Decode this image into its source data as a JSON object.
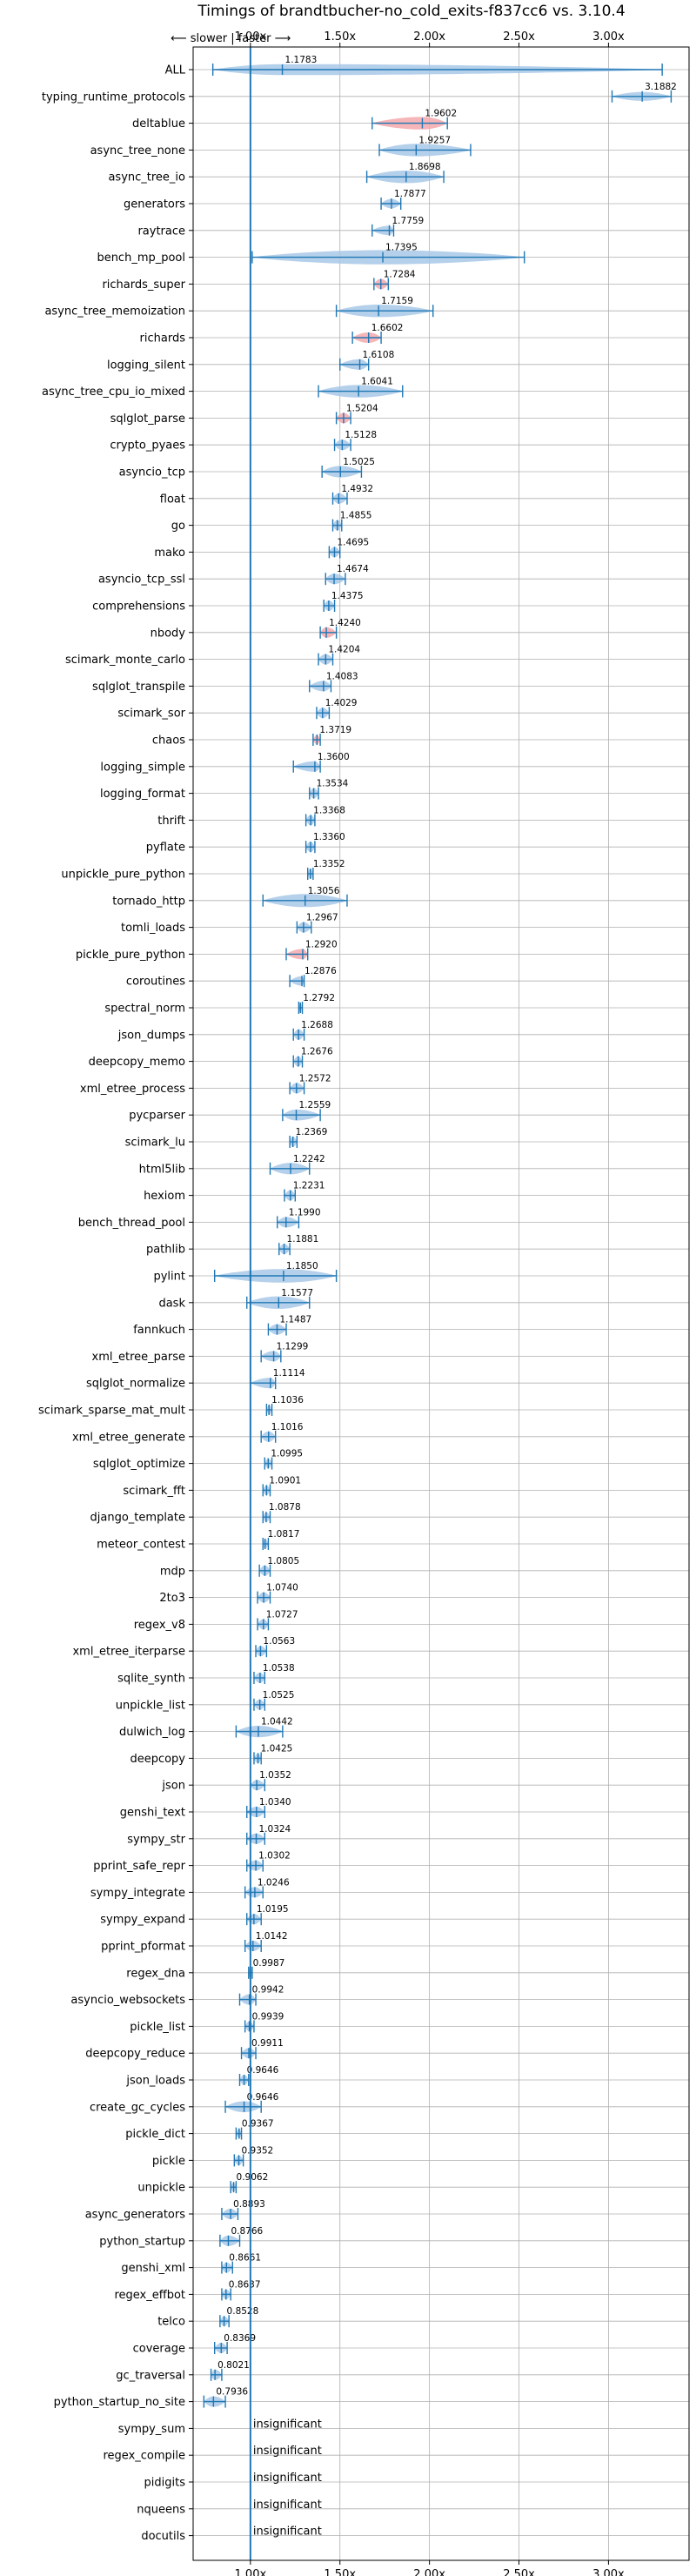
{
  "chart_data": {
    "type": "violin",
    "title": "Timings of brandtbucher-no_cold_exits-f837cc6 vs. 3.10.4",
    "direction_label": "⟵ slower | faster ⟶",
    "xlim": [
      0.68,
      3.45
    ],
    "x_ticks": [
      1.0,
      1.5,
      2.0,
      2.5,
      3.0
    ],
    "x_tick_labels": [
      "1.00x",
      "1.50x",
      "2.00x",
      "2.50x",
      "3.00x"
    ],
    "reference_line": 1.0,
    "grid": true,
    "insignificant_label": "insignificant",
    "colors": {
      "faster": "#a8c8e8",
      "slower": "#f4a8ac",
      "line": "#1f77b4",
      "grid": "#b0b0b0"
    },
    "benchmarks": [
      {
        "name": "ALL",
        "value": 1.1783,
        "label": "1.1783",
        "min": 0.79,
        "max": 3.3,
        "width": 0.28,
        "red": false
      },
      {
        "name": "typing_runtime_protocols",
        "value": 3.1882,
        "label": "3.1882",
        "min": 3.02,
        "max": 3.35,
        "width": 0.2,
        "red": false
      },
      {
        "name": "deltablue",
        "value": 1.9602,
        "label": "1.9602",
        "min": 1.68,
        "max": 2.1,
        "width": 0.34,
        "red": true
      },
      {
        "name": "async_tree_none",
        "value": 1.9257,
        "label": "1.9257",
        "min": 1.72,
        "max": 2.23,
        "width": 0.34,
        "red": false
      },
      {
        "name": "async_tree_io",
        "value": 1.8698,
        "label": "1.8698",
        "min": 1.65,
        "max": 2.08,
        "width": 0.34,
        "red": false
      },
      {
        "name": "generators",
        "value": 1.7877,
        "label": "1.7877",
        "min": 1.73,
        "max": 1.84,
        "width": 0.22,
        "red": false
      },
      {
        "name": "raytrace",
        "value": 1.7759,
        "label": "1.7759",
        "min": 1.68,
        "max": 1.8,
        "width": 0.22,
        "red": false
      },
      {
        "name": "bench_mp_pool",
        "value": 1.7395,
        "label": "1.7395",
        "min": 1.01,
        "max": 2.53,
        "width": 0.4,
        "red": false
      },
      {
        "name": "richards_super",
        "value": 1.7284,
        "label": "1.7284",
        "min": 1.69,
        "max": 1.77,
        "width": 0.26,
        "red": true
      },
      {
        "name": "async_tree_memoization",
        "value": 1.7159,
        "label": "1.7159",
        "min": 1.48,
        "max": 2.02,
        "width": 0.34,
        "red": false
      },
      {
        "name": "richards",
        "value": 1.6602,
        "label": "1.6602",
        "min": 1.57,
        "max": 1.73,
        "width": 0.26,
        "red": true
      },
      {
        "name": "logging_silent",
        "value": 1.6108,
        "label": "1.6108",
        "min": 1.5,
        "max": 1.66,
        "width": 0.26,
        "red": false
      },
      {
        "name": "async_tree_cpu_io_mixed",
        "value": 1.6041,
        "label": "1.6041",
        "min": 1.38,
        "max": 1.85,
        "width": 0.34,
        "red": false
      },
      {
        "name": "sqlglot_parse",
        "value": 1.5204,
        "label": "1.5204",
        "min": 1.48,
        "max": 1.56,
        "width": 0.26,
        "red": true
      },
      {
        "name": "crypto_pyaes",
        "value": 1.5128,
        "label": "1.5128",
        "min": 1.47,
        "max": 1.56,
        "width": 0.26,
        "red": false
      },
      {
        "name": "asyncio_tcp",
        "value": 1.5025,
        "label": "1.5025",
        "min": 1.4,
        "max": 1.62,
        "width": 0.3,
        "red": false
      },
      {
        "name": "float",
        "value": 1.4932,
        "label": "1.4932",
        "min": 1.46,
        "max": 1.54,
        "width": 0.26,
        "red": false
      },
      {
        "name": "go",
        "value": 1.4855,
        "label": "1.4855",
        "min": 1.46,
        "max": 1.51,
        "width": 0.26,
        "red": false
      },
      {
        "name": "mako",
        "value": 1.4695,
        "label": "1.4695",
        "min": 1.44,
        "max": 1.5,
        "width": 0.26,
        "red": false
      },
      {
        "name": "asyncio_tcp_ssl",
        "value": 1.4674,
        "label": "1.4674",
        "min": 1.42,
        "max": 1.53,
        "width": 0.26,
        "red": false
      },
      {
        "name": "comprehensions",
        "value": 1.4375,
        "label": "1.4375",
        "min": 1.41,
        "max": 1.47,
        "width": 0.26,
        "red": false
      },
      {
        "name": "nbody",
        "value": 1.424,
        "label": "1.4240",
        "min": 1.39,
        "max": 1.48,
        "width": 0.26,
        "red": true
      },
      {
        "name": "scimark_monte_carlo",
        "value": 1.4204,
        "label": "1.4204",
        "min": 1.38,
        "max": 1.46,
        "width": 0.26,
        "red": false
      },
      {
        "name": "sqlglot_transpile",
        "value": 1.4083,
        "label": "1.4083",
        "min": 1.33,
        "max": 1.45,
        "width": 0.26,
        "red": false
      },
      {
        "name": "scimark_sor",
        "value": 1.4029,
        "label": "1.4029",
        "min": 1.37,
        "max": 1.44,
        "width": 0.26,
        "red": false
      },
      {
        "name": "chaos",
        "value": 1.3719,
        "label": "1.3719",
        "min": 1.35,
        "max": 1.39,
        "width": 0.22,
        "red": true
      },
      {
        "name": "logging_simple",
        "value": 1.36,
        "label": "1.3600",
        "min": 1.24,
        "max": 1.39,
        "width": 0.26,
        "red": false
      },
      {
        "name": "logging_format",
        "value": 1.3534,
        "label": "1.3534",
        "min": 1.33,
        "max": 1.38,
        "width": 0.26,
        "red": false
      },
      {
        "name": "thrift",
        "value": 1.3368,
        "label": "1.3368",
        "min": 1.31,
        "max": 1.36,
        "width": 0.26,
        "red": false
      },
      {
        "name": "pyflate",
        "value": 1.336,
        "label": "1.3360",
        "min": 1.31,
        "max": 1.36,
        "width": 0.26,
        "red": false
      },
      {
        "name": "unpickle_pure_python",
        "value": 1.3352,
        "label": "1.3352",
        "min": 1.32,
        "max": 1.35,
        "width": 0.26,
        "red": false
      },
      {
        "name": "tornado_http",
        "value": 1.3056,
        "label": "1.3056",
        "min": 1.07,
        "max": 1.54,
        "width": 0.36,
        "red": false
      },
      {
        "name": "tomli_loads",
        "value": 1.2967,
        "label": "1.2967",
        "min": 1.26,
        "max": 1.34,
        "width": 0.26,
        "red": false
      },
      {
        "name": "pickle_pure_python",
        "value": 1.292,
        "label": "1.2920",
        "min": 1.2,
        "max": 1.32,
        "width": 0.26,
        "red": true
      },
      {
        "name": "coroutines",
        "value": 1.2876,
        "label": "1.2876",
        "min": 1.22,
        "max": 1.3,
        "width": 0.22,
        "red": false
      },
      {
        "name": "spectral_norm",
        "value": 1.2792,
        "label": "1.2792",
        "min": 1.27,
        "max": 1.29,
        "width": 0.22,
        "red": false
      },
      {
        "name": "json_dumps",
        "value": 1.2688,
        "label": "1.2688",
        "min": 1.24,
        "max": 1.3,
        "width": 0.26,
        "red": false
      },
      {
        "name": "deepcopy_memo",
        "value": 1.2676,
        "label": "1.2676",
        "min": 1.24,
        "max": 1.29,
        "width": 0.26,
        "red": false
      },
      {
        "name": "xml_etree_process",
        "value": 1.2572,
        "label": "1.2572",
        "min": 1.22,
        "max": 1.3,
        "width": 0.26,
        "red": false
      },
      {
        "name": "pycparser",
        "value": 1.2559,
        "label": "1.2559",
        "min": 1.18,
        "max": 1.39,
        "width": 0.28,
        "red": false
      },
      {
        "name": "scimark_lu",
        "value": 1.2369,
        "label": "1.2369",
        "min": 1.22,
        "max": 1.26,
        "width": 0.26,
        "red": false
      },
      {
        "name": "html5lib",
        "value": 1.2242,
        "label": "1.2242",
        "min": 1.11,
        "max": 1.33,
        "width": 0.3,
        "red": false
      },
      {
        "name": "hexiom",
        "value": 1.2231,
        "label": "1.2231",
        "min": 1.19,
        "max": 1.25,
        "width": 0.26,
        "red": false
      },
      {
        "name": "bench_thread_pool",
        "value": 1.199,
        "label": "1.1990",
        "min": 1.15,
        "max": 1.27,
        "width": 0.26,
        "red": false
      },
      {
        "name": "pathlib",
        "value": 1.1881,
        "label": "1.1881",
        "min": 1.16,
        "max": 1.22,
        "width": 0.26,
        "red": false
      },
      {
        "name": "pylint",
        "value": 1.185,
        "label": "1.1850",
        "min": 0.8,
        "max": 1.48,
        "width": 0.38,
        "red": false
      },
      {
        "name": "dask",
        "value": 1.1577,
        "label": "1.1577",
        "min": 0.98,
        "max": 1.33,
        "width": 0.34,
        "red": false
      },
      {
        "name": "fannkuch",
        "value": 1.1487,
        "label": "1.1487",
        "min": 1.1,
        "max": 1.2,
        "width": 0.26,
        "red": false
      },
      {
        "name": "xml_etree_parse",
        "value": 1.1299,
        "label": "1.1299",
        "min": 1.06,
        "max": 1.17,
        "width": 0.26,
        "red": false
      },
      {
        "name": "sqlglot_normalize",
        "value": 1.1114,
        "label": "1.1114",
        "min": 1.0,
        "max": 1.14,
        "width": 0.26,
        "red": false
      },
      {
        "name": "scimark_sparse_mat_mult",
        "value": 1.1036,
        "label": "1.1036",
        "min": 1.09,
        "max": 1.12,
        "width": 0.24,
        "red": false
      },
      {
        "name": "xml_etree_generate",
        "value": 1.1016,
        "label": "1.1016",
        "min": 1.06,
        "max": 1.14,
        "width": 0.26,
        "red": false
      },
      {
        "name": "sqlglot_optimize",
        "value": 1.0995,
        "label": "1.0995",
        "min": 1.08,
        "max": 1.12,
        "width": 0.24,
        "red": false
      },
      {
        "name": "scimark_fft",
        "value": 1.0901,
        "label": "1.0901",
        "min": 1.07,
        "max": 1.11,
        "width": 0.24,
        "red": false
      },
      {
        "name": "django_template",
        "value": 1.0878,
        "label": "1.0878",
        "min": 1.07,
        "max": 1.11,
        "width": 0.24,
        "red": false
      },
      {
        "name": "meteor_contest",
        "value": 1.0817,
        "label": "1.0817",
        "min": 1.07,
        "max": 1.1,
        "width": 0.24,
        "red": false
      },
      {
        "name": "mdp",
        "value": 1.0805,
        "label": "1.0805",
        "min": 1.05,
        "max": 1.11,
        "width": 0.26,
        "red": false
      },
      {
        "name": "2to3",
        "value": 1.074,
        "label": "1.0740",
        "min": 1.04,
        "max": 1.11,
        "width": 0.26,
        "red": false
      },
      {
        "name": "regex_v8",
        "value": 1.0727,
        "label": "1.0727",
        "min": 1.04,
        "max": 1.1,
        "width": 0.26,
        "red": false
      },
      {
        "name": "xml_etree_iterparse",
        "value": 1.0563,
        "label": "1.0563",
        "min": 1.03,
        "max": 1.09,
        "width": 0.26,
        "red": false
      },
      {
        "name": "sqlite_synth",
        "value": 1.0538,
        "label": "1.0538",
        "min": 1.02,
        "max": 1.08,
        "width": 0.26,
        "red": false
      },
      {
        "name": "unpickle_list",
        "value": 1.0525,
        "label": "1.0525",
        "min": 1.02,
        "max": 1.08,
        "width": 0.26,
        "red": false
      },
      {
        "name": "dulwich_log",
        "value": 1.0442,
        "label": "1.0442",
        "min": 0.92,
        "max": 1.18,
        "width": 0.3,
        "red": false
      },
      {
        "name": "deepcopy",
        "value": 1.0425,
        "label": "1.0425",
        "min": 1.02,
        "max": 1.06,
        "width": 0.24,
        "red": false
      },
      {
        "name": "json",
        "value": 1.0352,
        "label": "1.0352",
        "min": 1.0,
        "max": 1.08,
        "width": 0.26,
        "red": false
      },
      {
        "name": "genshi_text",
        "value": 1.034,
        "label": "1.0340",
        "min": 0.98,
        "max": 1.08,
        "width": 0.26,
        "red": false
      },
      {
        "name": "sympy_str",
        "value": 1.0324,
        "label": "1.0324",
        "min": 0.98,
        "max": 1.08,
        "width": 0.26,
        "red": false
      },
      {
        "name": "pprint_safe_repr",
        "value": 1.0302,
        "label": "1.0302",
        "min": 0.98,
        "max": 1.07,
        "width": 0.26,
        "red": false
      },
      {
        "name": "sympy_integrate",
        "value": 1.0246,
        "label": "1.0246",
        "min": 0.97,
        "max": 1.07,
        "width": 0.26,
        "red": false
      },
      {
        "name": "sympy_expand",
        "value": 1.0195,
        "label": "1.0195",
        "min": 0.98,
        "max": 1.06,
        "width": 0.26,
        "red": false
      },
      {
        "name": "pprint_pformat",
        "value": 1.0142,
        "label": "1.0142",
        "min": 0.97,
        "max": 1.06,
        "width": 0.26,
        "red": false
      },
      {
        "name": "regex_dna",
        "value": 0.9987,
        "label": "0.9987",
        "min": 0.99,
        "max": 1.01,
        "width": 0.22,
        "red": false
      },
      {
        "name": "asyncio_websockets",
        "value": 0.9942,
        "label": "0.9942",
        "min": 0.94,
        "max": 1.03,
        "width": 0.26,
        "red": false
      },
      {
        "name": "pickle_list",
        "value": 0.9939,
        "label": "0.9939",
        "min": 0.97,
        "max": 1.02,
        "width": 0.24,
        "red": false
      },
      {
        "name": "deepcopy_reduce",
        "value": 0.9911,
        "label": "0.9911",
        "min": 0.95,
        "max": 1.03,
        "width": 0.26,
        "red": false
      },
      {
        "name": "json_loads",
        "value": 0.9646,
        "label": "0.9646",
        "min": 0.94,
        "max": 0.99,
        "width": 0.24,
        "red": false
      },
      {
        "name": "create_gc_cycles",
        "value": 0.9646,
        "label": "0.9646",
        "min": 0.86,
        "max": 1.06,
        "width": 0.28,
        "red": false
      },
      {
        "name": "pickle_dict",
        "value": 0.9367,
        "label": "0.9367",
        "min": 0.92,
        "max": 0.95,
        "width": 0.22,
        "red": false
      },
      {
        "name": "pickle",
        "value": 0.9352,
        "label": "0.9352",
        "min": 0.91,
        "max": 0.96,
        "width": 0.24,
        "red": false
      },
      {
        "name": "unpickle",
        "value": 0.9062,
        "label": "0.9062",
        "min": 0.89,
        "max": 0.92,
        "width": 0.22,
        "red": false
      },
      {
        "name": "async_generators",
        "value": 0.8893,
        "label": "0.8893",
        "min": 0.84,
        "max": 0.93,
        "width": 0.26,
        "red": false
      },
      {
        "name": "python_startup",
        "value": 0.8766,
        "label": "0.8766",
        "min": 0.83,
        "max": 0.94,
        "width": 0.26,
        "red": false
      },
      {
        "name": "genshi_xml",
        "value": 0.8661,
        "label": "0.8661",
        "min": 0.84,
        "max": 0.9,
        "width": 0.26,
        "red": false
      },
      {
        "name": "regex_effbot",
        "value": 0.8637,
        "label": "0.8637",
        "min": 0.84,
        "max": 0.89,
        "width": 0.24,
        "red": false
      },
      {
        "name": "telco",
        "value": 0.8528,
        "label": "0.8528",
        "min": 0.83,
        "max": 0.88,
        "width": 0.24,
        "red": false
      },
      {
        "name": "coverage",
        "value": 0.8369,
        "label": "0.8369",
        "min": 0.8,
        "max": 0.87,
        "width": 0.26,
        "red": false
      },
      {
        "name": "gc_traversal",
        "value": 0.8021,
        "label": "0.8021",
        "min": 0.78,
        "max": 0.84,
        "width": 0.26,
        "red": false
      },
      {
        "name": "python_startup_no_site",
        "value": 0.7936,
        "label": "0.7936",
        "min": 0.74,
        "max": 0.86,
        "width": 0.26,
        "red": false
      },
      {
        "name": "sympy_sum",
        "insignificant": true
      },
      {
        "name": "regex_compile",
        "insignificant": true
      },
      {
        "name": "pidigits",
        "insignificant": true
      },
      {
        "name": "nqueens",
        "insignificant": true
      },
      {
        "name": "docutils",
        "insignificant": true
      }
    ]
  }
}
